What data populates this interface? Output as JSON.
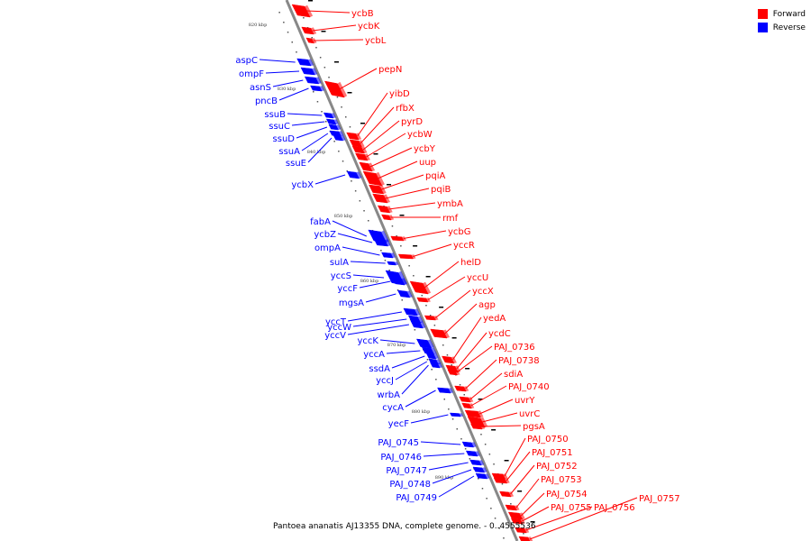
{
  "legend": {
    "items": [
      {
        "label": "Forward",
        "color": "#ff0000"
      },
      {
        "label": "Reverse",
        "color": "#0000ff"
      }
    ]
  },
  "caption": "Pantoea ananatis AJ13355 DNA, complete genome. - 0..4555536",
  "colors": {
    "forward": "#ff0000",
    "reverse": "#0000ff",
    "backbone": "#888888"
  },
  "ticks": [
    "820 kbp",
    "830 kbp",
    "840 kbp",
    "850 kbp",
    "860 kbp",
    "870 kbp",
    "880 kbp",
    "890 kbp"
  ],
  "forward_genes": [
    "ycbB",
    "ycbK",
    "ycbL",
    "pepN",
    "yibD",
    "rfbX",
    "pyrD",
    "ycbW",
    "ycbY",
    "uup",
    "pqiA",
    "pqiB",
    "ymbA",
    "rmf",
    "ycbG",
    "yccR",
    "helD",
    "yccU",
    "yccX",
    "agp",
    "yedA",
    "ycdC",
    "PAJ_0736",
    "PAJ_0738",
    "sdiA",
    "PAJ_0740",
    "uvrY",
    "uvrC",
    "pgsA",
    "PAJ_0750",
    "PAJ_0751",
    "PAJ_0752",
    "PAJ_0753",
    "PAJ_0754",
    "PAJ_0755",
    "PAJ_0756",
    "PAJ_0757"
  ],
  "reverse_genes": [
    "aspC",
    "ompF",
    "asnS",
    "pncB",
    "ssuB",
    "ssuC",
    "ssuD",
    "ssuA",
    "ssuE",
    "ycbX",
    "fabA",
    "ycbZ",
    "ompA",
    "sulA",
    "yccS",
    "yccF",
    "mgsA",
    "yccT",
    "yccW",
    "yccV",
    "yccK",
    "yccA",
    "ssdA",
    "yccJ",
    "wrbA",
    "cycA",
    "yecF",
    "PAJ_0745",
    "PAJ_0746",
    "PAJ_0747",
    "PAJ_0748",
    "PAJ_0749"
  ]
}
